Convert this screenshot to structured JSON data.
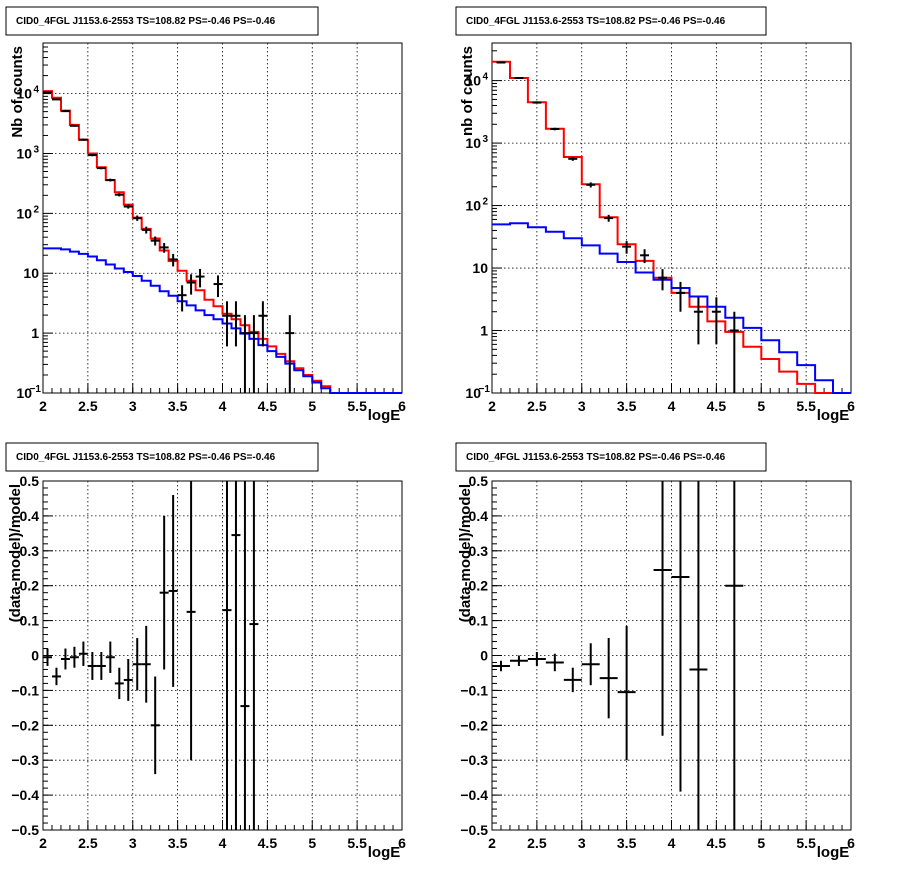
{
  "chart_data": [
    {
      "panel": "top-left",
      "type": "histogram",
      "title": "CID0_4FGL J1153.6-2553 TS=108.82 PS=-0.46 PS=-0.46",
      "xlabel": "logE",
      "ylabel": "Nb of counts",
      "xlim": [
        2,
        6
      ],
      "ylim": [
        0.1,
        70000
      ],
      "log_y": true,
      "grid": true,
      "x_ticks": [
        "2",
        "2.5",
        "3",
        "3.5",
        "4",
        "4.5",
        "5",
        "5.5",
        "6"
      ],
      "y_ticks": [
        {
          "v": 0.1,
          "mant": "10",
          "exp": "−1"
        },
        {
          "v": 1,
          "mant": "1",
          "exp": ""
        },
        {
          "v": 10,
          "mant": "10",
          "exp": ""
        },
        {
          "v": 100,
          "mant": "10",
          "exp": "2"
        },
        {
          "v": 1000,
          "mant": "10",
          "exp": "3"
        },
        {
          "v": 10000,
          "mant": "10",
          "exp": "4"
        }
      ],
      "series": [
        {
          "color": "#ff0000",
          "style": "step",
          "edges": [
            2.0,
            2.1,
            2.2,
            2.3,
            2.4,
            2.5,
            2.6,
            2.7,
            2.8,
            2.9,
            3.0,
            3.1,
            3.2,
            3.3,
            3.4,
            3.5,
            3.6,
            3.7,
            3.8,
            3.9,
            4.0,
            4.1,
            4.2,
            4.3,
            4.4,
            4.5,
            4.6,
            4.7,
            4.8,
            4.9,
            5.0,
            5.1,
            5.2,
            5.3,
            5.4,
            5.5,
            5.6,
            5.7,
            5.8,
            5.9,
            6.0
          ],
          "values": [
            11000,
            8500,
            5200,
            3000,
            1700,
            1000,
            590,
            360,
            225,
            140,
            85,
            55,
            38,
            24,
            16,
            11,
            7.5,
            5.2,
            3.6,
            2.8,
            2.1,
            1.7,
            1.35,
            1.05,
            0.8,
            0.6,
            0.45,
            0.34,
            0.26,
            0.2,
            0.16,
            0.13,
            0.1,
            0.1,
            0.1,
            0.1,
            0.1,
            0.1,
            0.1,
            0.1
          ]
        },
        {
          "color": "#0000ff",
          "style": "step",
          "edges": [
            2.0,
            2.1,
            2.2,
            2.3,
            2.4,
            2.5,
            2.6,
            2.7,
            2.8,
            2.9,
            3.0,
            3.1,
            3.2,
            3.3,
            3.4,
            3.5,
            3.6,
            3.7,
            3.8,
            3.9,
            4.0,
            4.1,
            4.2,
            4.3,
            4.4,
            4.5,
            4.6,
            4.7,
            4.8,
            4.9,
            5.0,
            5.1,
            5.2,
            5.3,
            5.4,
            5.5,
            5.6,
            5.7,
            5.8,
            5.9,
            6.0
          ],
          "values": [
            26,
            26,
            25,
            23,
            21,
            19,
            16.5,
            14,
            12,
            10.5,
            9,
            7.5,
            6.2,
            5,
            4.2,
            3.4,
            2.9,
            2.4,
            2,
            1.7,
            1.45,
            1.2,
            0.98,
            0.8,
            0.63,
            0.5,
            0.4,
            0.31,
            0.24,
            0.19,
            0.15,
            0.12,
            0.1,
            0.1,
            0.1,
            0.1,
            0.1,
            0.1,
            0.1,
            0.1
          ]
        },
        {
          "color": "#000000",
          "style": "errorbar",
          "points": [
            {
              "x": 2.05,
              "y": 10500,
              "lo": 10300,
              "hi": 10700
            },
            {
              "x": 2.15,
              "y": 8000,
              "lo": 7800,
              "hi": 8200
            },
            {
              "x": 2.25,
              "y": 5100,
              "lo": 4950,
              "hi": 5250
            },
            {
              "x": 2.35,
              "y": 2900,
              "lo": 2800,
              "hi": 3000
            },
            {
              "x": 2.45,
              "y": 1700,
              "lo": 1630,
              "hi": 1770
            },
            {
              "x": 2.55,
              "y": 940,
              "lo": 900,
              "hi": 980
            },
            {
              "x": 2.65,
              "y": 570,
              "lo": 545,
              "hi": 595
            },
            {
              "x": 2.75,
              "y": 360,
              "lo": 340,
              "hi": 380
            },
            {
              "x": 2.85,
              "y": 205,
              "lo": 192,
              "hi": 218
            },
            {
              "x": 2.95,
              "y": 130,
              "lo": 120,
              "hi": 140
            },
            {
              "x": 3.05,
              "y": 83,
              "lo": 75,
              "hi": 92
            },
            {
              "x": 3.15,
              "y": 53,
              "lo": 46,
              "hi": 60
            },
            {
              "x": 3.25,
              "y": 35,
              "lo": 29,
              "hi": 41
            },
            {
              "x": 3.35,
              "y": 27,
              "lo": 22,
              "hi": 32
            },
            {
              "x": 3.45,
              "y": 17,
              "lo": 13,
              "hi": 21
            },
            {
              "x": 3.55,
              "y": 4.3,
              "lo": 2.3,
              "hi": 6.3
            },
            {
              "x": 3.65,
              "y": 7,
              "lo": 4.4,
              "hi": 9.6
            },
            {
              "x": 3.75,
              "y": 8.8,
              "lo": 5.8,
              "hi": 11.8
            },
            {
              "x": 3.95,
              "y": 6.6,
              "lo": 4,
              "hi": 9.2
            },
            {
              "x": 4.05,
              "y": 1.95,
              "lo": 0.6,
              "hi": 3.4
            },
            {
              "x": 4.15,
              "y": 1.95,
              "lo": 0.6,
              "hi": 3.4
            },
            {
              "x": 4.25,
              "y": 1,
              "lo": 0.1,
              "hi": 2
            },
            {
              "x": 4.35,
              "y": 1,
              "lo": 0.1,
              "hi": 2
            },
            {
              "x": 4.45,
              "y": 1.95,
              "lo": 0.6,
              "hi": 3.4
            },
            {
              "x": 4.75,
              "y": 1,
              "lo": 0.1,
              "hi": 2
            }
          ]
        }
      ]
    },
    {
      "panel": "top-right",
      "type": "histogram",
      "title": "CID0_4FGL J1153.6-2553 TS=108.82 PS=-0.46 PS=-0.46",
      "xlabel": "logE",
      "ylabel": "nb of counts",
      "xlim": [
        2,
        6
      ],
      "ylim": [
        0.1,
        40000
      ],
      "log_y": true,
      "grid": true,
      "x_ticks": [
        "2",
        "2.5",
        "3",
        "3.5",
        "4",
        "4.5",
        "5",
        "5.5",
        "6"
      ],
      "y_ticks": [
        {
          "v": 0.1,
          "mant": "10",
          "exp": "−1"
        },
        {
          "v": 1,
          "mant": "1",
          "exp": ""
        },
        {
          "v": 10,
          "mant": "10",
          "exp": ""
        },
        {
          "v": 100,
          "mant": "10",
          "exp": "2"
        },
        {
          "v": 1000,
          "mant": "10",
          "exp": "3"
        },
        {
          "v": 10000,
          "mant": "10",
          "exp": "4"
        }
      ],
      "series": [
        {
          "color": "#ff0000",
          "style": "step",
          "edges": [
            2.0,
            2.2,
            2.4,
            2.6,
            2.8,
            3.0,
            3.2,
            3.4,
            3.6,
            3.8,
            4.0,
            4.2,
            4.4,
            4.6,
            4.8,
            5.0,
            5.2,
            5.4,
            5.6,
            5.8,
            6.0
          ],
          "values": [
            20000,
            11000,
            4500,
            1700,
            600,
            220,
            65,
            24,
            13,
            7,
            4,
            2.4,
            1.4,
            0.95,
            0.55,
            0.35,
            0.22,
            0.14,
            0.1,
            0.1
          ]
        },
        {
          "color": "#0000ff",
          "style": "step",
          "edges": [
            2.0,
            2.2,
            2.4,
            2.6,
            2.8,
            3.0,
            3.2,
            3.4,
            3.6,
            3.8,
            4.0,
            4.2,
            4.4,
            4.6,
            4.8,
            5.0,
            5.2,
            5.4,
            5.6,
            5.8,
            6.0
          ],
          "values": [
            50,
            52,
            45,
            38,
            30,
            23,
            17,
            12.5,
            8.5,
            6.5,
            4.8,
            3.5,
            2.4,
            1.6,
            1.1,
            0.7,
            0.45,
            0.28,
            0.16,
            0.1
          ]
        },
        {
          "color": "#000000",
          "style": "errorbar",
          "points": [
            {
              "x": 2.1,
              "y": 19500,
              "lo": 19200,
              "hi": 19800
            },
            {
              "x": 2.3,
              "y": 11000,
              "lo": 10800,
              "hi": 11200
            },
            {
              "x": 2.5,
              "y": 4450,
              "lo": 4330,
              "hi": 4570
            },
            {
              "x": 2.7,
              "y": 1680,
              "lo": 1600,
              "hi": 1760
            },
            {
              "x": 2.9,
              "y": 560,
              "lo": 520,
              "hi": 600
            },
            {
              "x": 3.1,
              "y": 215,
              "lo": 195,
              "hi": 235
            },
            {
              "x": 3.3,
              "y": 63,
              "lo": 55,
              "hi": 71
            },
            {
              "x": 3.5,
              "y": 22,
              "lo": 17,
              "hi": 27
            },
            {
              "x": 3.7,
              "y": 16,
              "lo": 12,
              "hi": 20
            },
            {
              "x": 3.9,
              "y": 7,
              "lo": 4.4,
              "hi": 9.6
            },
            {
              "x": 4.1,
              "y": 4,
              "lo": 2,
              "hi": 6
            },
            {
              "x": 4.3,
              "y": 2,
              "lo": 0.6,
              "hi": 3.4
            },
            {
              "x": 4.5,
              "y": 2,
              "lo": 0.6,
              "hi": 3.4
            },
            {
              "x": 4.7,
              "y": 1,
              "lo": 0.1,
              "hi": 2
            }
          ]
        }
      ]
    },
    {
      "panel": "bottom-left",
      "type": "errorbar",
      "title": "CID0_4FGL J1153.6-2553 TS=108.82 PS=-0.46 PS=-0.46",
      "xlabel": "logE",
      "ylabel": "(data-model)/model",
      "xlim": [
        2,
        6
      ],
      "ylim": [
        -0.5,
        0.5
      ],
      "log_y": false,
      "grid": true,
      "x_ticks": [
        "2",
        "2.5",
        "3",
        "3.5",
        "4",
        "4.5",
        "5",
        "5.5",
        "6"
      ],
      "y_ticks": [
        "−0.5",
        "−0.4",
        "−0.3",
        "−0.2",
        "−0.1",
        "0",
        "0.1",
        "0.2",
        "0.3",
        "0.4",
        "0.5"
      ],
      "series": [
        {
          "color": "#000000",
          "style": "errorbar",
          "halfwidth": 0.05,
          "points": [
            {
              "x": 2.05,
              "y": -0.005,
              "lo": -0.03,
              "hi": 0.02
            },
            {
              "x": 2.15,
              "y": -0.06,
              "lo": -0.085,
              "hi": -0.035
            },
            {
              "x": 2.25,
              "y": -0.01,
              "lo": -0.04,
              "hi": 0.02
            },
            {
              "x": 2.35,
              "y": -0.005,
              "lo": -0.035,
              "hi": 0.025
            },
            {
              "x": 2.45,
              "y": 0.005,
              "lo": -0.03,
              "hi": 0.04
            },
            {
              "x": 2.55,
              "y": -0.03,
              "lo": -0.07,
              "hi": 0.01
            },
            {
              "x": 2.65,
              "y": -0.03,
              "lo": -0.07,
              "hi": 0.01
            },
            {
              "x": 2.75,
              "y": -0.005,
              "lo": -0.05,
              "hi": 0.04
            },
            {
              "x": 2.85,
              "y": -0.08,
              "lo": -0.125,
              "hi": -0.035
            },
            {
              "x": 2.95,
              "y": -0.07,
              "lo": -0.13,
              "hi": -0.01
            },
            {
              "x": 3.05,
              "y": -0.025,
              "lo": -0.1,
              "hi": 0.05
            },
            {
              "x": 3.15,
              "y": -0.025,
              "lo": -0.135,
              "hi": 0.085
            },
            {
              "x": 3.25,
              "y": -0.2,
              "lo": -0.34,
              "hi": -0.06
            },
            {
              "x": 3.35,
              "y": 0.18,
              "lo": -0.04,
              "hi": 0.4
            },
            {
              "x": 3.45,
              "y": 0.185,
              "lo": -0.09,
              "hi": 0.46
            },
            {
              "x": 3.65,
              "y": 0.125,
              "lo": -0.3,
              "hi": 0.55
            },
            {
              "x": 4.05,
              "y": 0.13,
              "lo": -0.55,
              "hi": 0.55
            },
            {
              "x": 4.15,
              "y": 0.345,
              "lo": -0.55,
              "hi": 0.55
            },
            {
              "x": 4.25,
              "y": -0.145,
              "lo": -0.55,
              "hi": 0.55
            },
            {
              "x": 4.35,
              "y": 0.09,
              "lo": -0.55,
              "hi": 0.55
            }
          ]
        }
      ]
    },
    {
      "panel": "bottom-right",
      "type": "errorbar",
      "title": "CID0_4FGL J1153.6-2553 TS=108.82 PS=-0.46 PS=-0.46",
      "xlabel": "logE",
      "ylabel": "(data-model)/model",
      "xlim": [
        2,
        6
      ],
      "ylim": [
        -0.5,
        0.5
      ],
      "log_y": false,
      "grid": true,
      "x_ticks": [
        "2",
        "2.5",
        "3",
        "3.5",
        "4",
        "4.5",
        "5",
        "5.5",
        "6"
      ],
      "y_ticks": [
        "−0.5",
        "−0.4",
        "−0.3",
        "−0.2",
        "−0.1",
        "0",
        "0.1",
        "0.2",
        "0.3",
        "0.4",
        "0.5"
      ],
      "series": [
        {
          "color": "#000000",
          "style": "errorbar",
          "halfwidth": 0.1,
          "points": [
            {
              "x": 2.1,
              "y": -0.03,
              "lo": -0.045,
              "hi": -0.015
            },
            {
              "x": 2.3,
              "y": -0.015,
              "lo": -0.03,
              "hi": 0.0
            },
            {
              "x": 2.5,
              "y": -0.01,
              "lo": -0.03,
              "hi": 0.01
            },
            {
              "x": 2.7,
              "y": -0.02,
              "lo": -0.045,
              "hi": 0.005
            },
            {
              "x": 2.9,
              "y": -0.07,
              "lo": -0.105,
              "hi": -0.035
            },
            {
              "x": 3.1,
              "y": -0.025,
              "lo": -0.085,
              "hi": 0.035
            },
            {
              "x": 3.3,
              "y": -0.065,
              "lo": -0.18,
              "hi": 0.05
            },
            {
              "x": 3.5,
              "y": -0.105,
              "lo": -0.3,
              "hi": 0.085
            },
            {
              "x": 3.9,
              "y": 0.245,
              "lo": -0.23,
              "hi": 0.55
            },
            {
              "x": 4.1,
              "y": 0.225,
              "lo": -0.39,
              "hi": 0.55
            },
            {
              "x": 4.3,
              "y": -0.04,
              "lo": -0.55,
              "hi": 0.55
            },
            {
              "x": 4.7,
              "y": 0.2,
              "lo": -0.55,
              "hi": 0.55
            }
          ]
        }
      ]
    }
  ]
}
